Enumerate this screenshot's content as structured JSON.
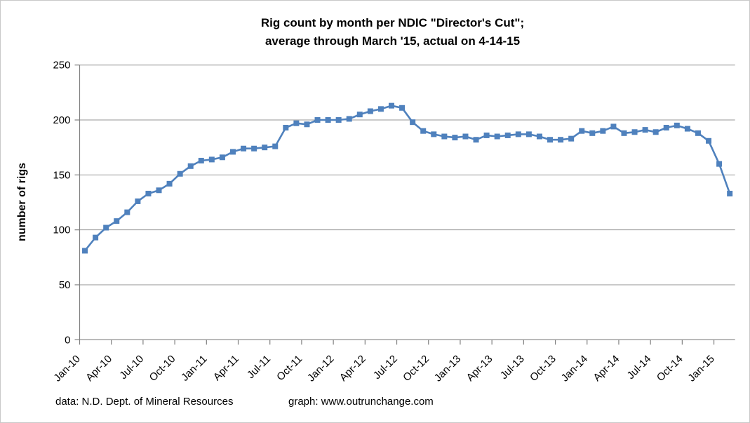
{
  "chart": {
    "title_line1": "Rig count by month per NDIC \"Director's Cut\";",
    "title_line2": "average through March '15, actual on 4-14-15",
    "y_axis_title": "number of rigs",
    "footer": {
      "data_source": "data: N.D. Dept. of Mineral Resources",
      "graph_credit": "graph: www.outrunchange.com"
    }
  },
  "chart_data": {
    "type": "line",
    "title": "Rig count by month per NDIC \"Director's Cut\"; average through March '15, actual on 4-14-15",
    "xlabel": "",
    "ylabel": "number of rigs",
    "ylim": [
      0,
      250
    ],
    "yticks": [
      0,
      50,
      100,
      150,
      200,
      250
    ],
    "x_tick_label_interval": 3,
    "grid": "horizontal",
    "legend": "none",
    "marker": "square",
    "series_color": "#4F81BD",
    "gridline_color": "#969696",
    "axis_color": "#808080",
    "categories": [
      "Jan-10",
      "Feb-10",
      "Mar-10",
      "Apr-10",
      "May-10",
      "Jun-10",
      "Jul-10",
      "Aug-10",
      "Sep-10",
      "Oct-10",
      "Nov-10",
      "Dec-10",
      "Jan-11",
      "Feb-11",
      "Mar-11",
      "Apr-11",
      "May-11",
      "Jun-11",
      "Jul-11",
      "Aug-11",
      "Sep-11",
      "Oct-11",
      "Nov-11",
      "Dec-11",
      "Jan-12",
      "Feb-12",
      "Mar-12",
      "Apr-12",
      "May-12",
      "Jun-12",
      "Jul-12",
      "Aug-12",
      "Sep-12",
      "Oct-12",
      "Nov-12",
      "Dec-12",
      "Jan-13",
      "Feb-13",
      "Mar-13",
      "Apr-13",
      "May-13",
      "Jun-13",
      "Jul-13",
      "Aug-13",
      "Sep-13",
      "Oct-13",
      "Nov-13",
      "Dec-13",
      "Jan-14",
      "Feb-14",
      "Mar-14",
      "Apr-14",
      "May-14",
      "Jun-14",
      "Jul-14",
      "Aug-14",
      "Sep-14",
      "Oct-14",
      "Nov-14",
      "Dec-14",
      "Jan-15",
      "Feb-15"
    ],
    "series": [
      {
        "name": "rig count",
        "values": [
          81,
          93,
          102,
          108,
          116,
          126,
          133,
          136,
          142,
          151,
          158,
          163,
          164,
          166,
          171,
          174,
          174,
          175,
          176,
          193,
          197,
          196,
          200,
          200,
          200,
          201,
          205,
          208,
          210,
          213,
          211,
          198,
          190,
          187,
          185,
          184,
          185,
          182,
          186,
          185,
          186,
          187,
          187,
          185,
          182,
          182,
          183,
          190,
          188,
          190,
          194,
          188,
          189,
          191,
          189,
          193,
          195,
          192,
          188,
          181,
          160,
          133
        ]
      }
    ]
  }
}
